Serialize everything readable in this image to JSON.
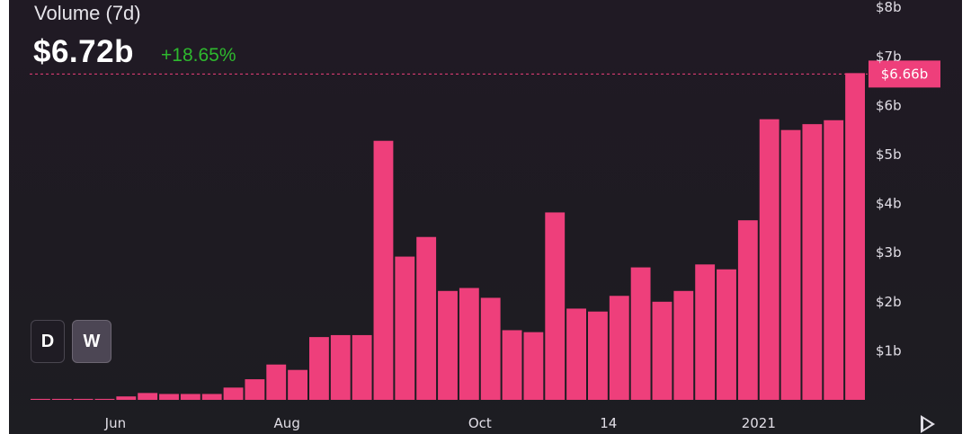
{
  "header": {
    "title": "Volume (7d)",
    "value": "$6.72b",
    "change": "+18.65%"
  },
  "controls": {
    "day_label": "D",
    "week_label": "W",
    "active": "W"
  },
  "colors": {
    "bar": "#ee3f7b",
    "change_positive": "#2eb82e",
    "marker": "#ee3f7b"
  },
  "chart_data": {
    "type": "bar",
    "series": [
      {
        "values": [
          0.02,
          0.02,
          0.02,
          0.02,
          0.07,
          0.14,
          0.12,
          0.12,
          0.12,
          0.25,
          0.42,
          0.72,
          0.61,
          1.28,
          1.32,
          1.32,
          5.28,
          2.92,
          3.32,
          2.22,
          2.28,
          2.08,
          1.42,
          1.38,
          3.82,
          1.86,
          1.8,
          2.12,
          2.7,
          2.0,
          2.22,
          2.76,
          2.66,
          3.66,
          5.72,
          5.5,
          5.62,
          5.7,
          6.66
        ]
      }
    ],
    "x_tick_labels": [
      "Jun",
      "Aug",
      "Oct",
      "14",
      "2021"
    ],
    "x_tick_bar_index": [
      3.5,
      11.5,
      20.5,
      26.5,
      33.5
    ],
    "y_tick_labels": [
      "$1b",
      "$2b",
      "$3b",
      "$4b",
      "$5b",
      "$6b",
      "$7b",
      "$8b"
    ],
    "y_ticks": [
      1,
      2,
      3,
      4,
      5,
      6,
      7,
      8
    ],
    "ylim": [
      0,
      8
    ],
    "y_axis_position": "right",
    "grid": false,
    "current_value_marker": {
      "value": 6.66,
      "label": "$6.66b"
    }
  }
}
